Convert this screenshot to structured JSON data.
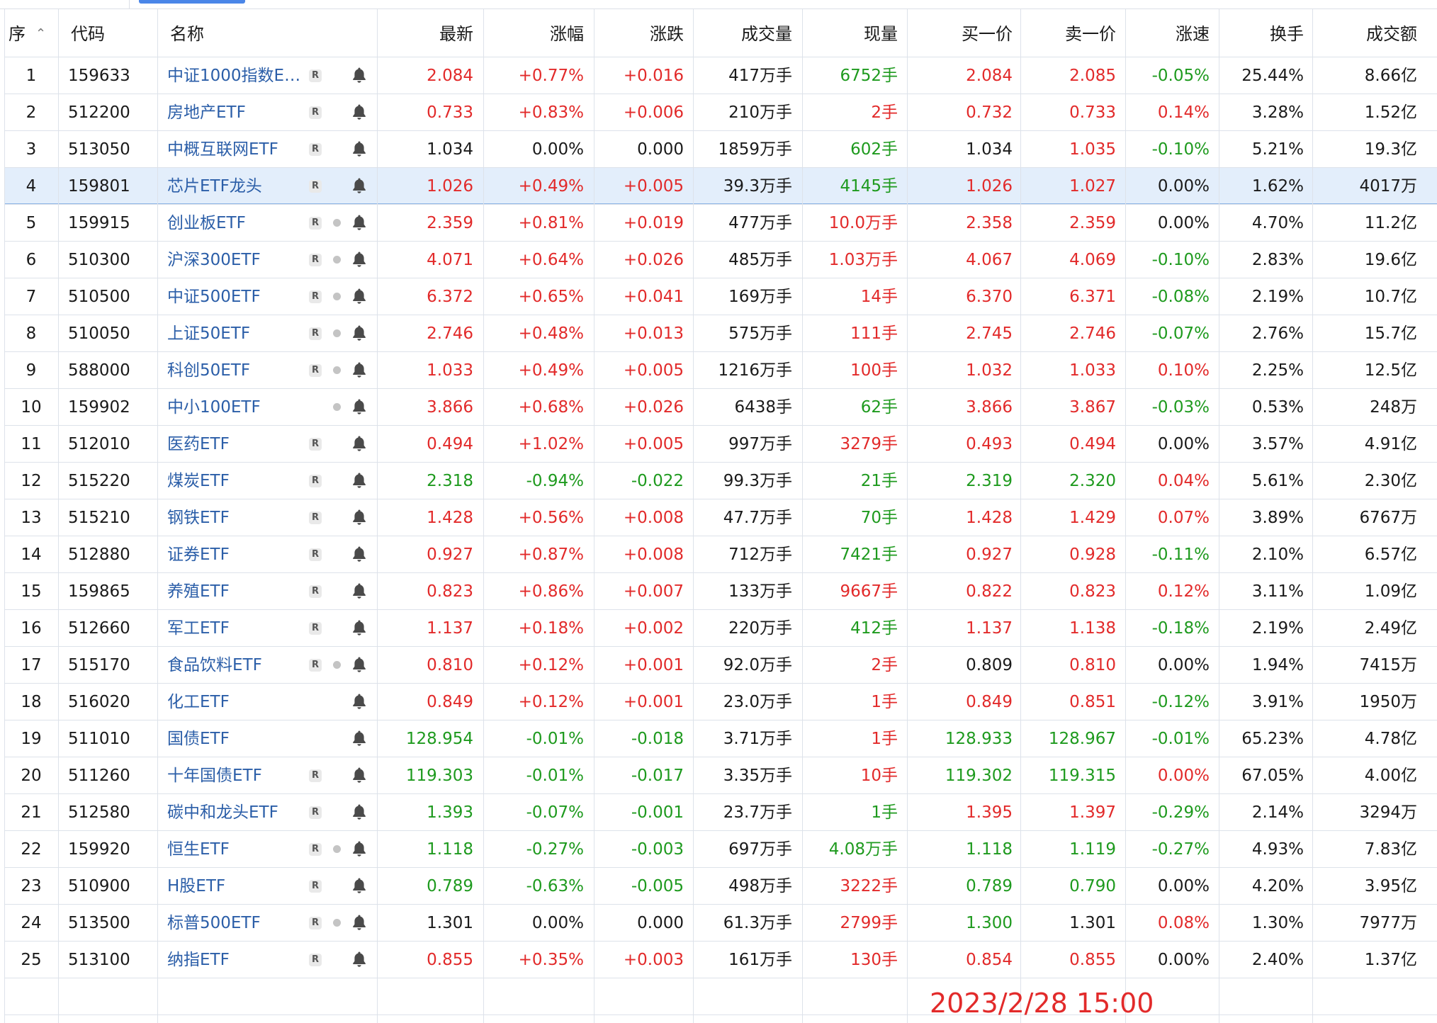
{
  "columns": {
    "seq": "序",
    "code": "代码",
    "name": "名称",
    "latest": "最新",
    "pct": "涨幅",
    "chg": "涨跌",
    "volume": "成交量",
    "now_vol": "现量",
    "bid": "买一价",
    "ask": "卖一价",
    "speed": "涨速",
    "turnover": "换手",
    "amount": "成交额"
  },
  "sort_icon": "sort-ascending-icon",
  "rows": [
    {
      "seq": "1",
      "code": "159633",
      "name": "中证1000指数E…",
      "r": true,
      "dot": false,
      "latest": "2.084",
      "pct": "+0.77%",
      "chg": "+0.016",
      "volume": "417万手",
      "now_vol": "6752手",
      "bid": "2.084",
      "ask": "2.085",
      "speed": "-0.05%",
      "turnover": "25.44%",
      "amount": "8.66亿",
      "c": {
        "latest": "red",
        "pct": "red",
        "chg": "red",
        "now_vol": "green",
        "bid": "red",
        "ask": "red",
        "speed": "green"
      }
    },
    {
      "seq": "2",
      "code": "512200",
      "name": "房地产ETF",
      "r": true,
      "dot": false,
      "latest": "0.733",
      "pct": "+0.83%",
      "chg": "+0.006",
      "volume": "210万手",
      "now_vol": "2手",
      "bid": "0.732",
      "ask": "0.733",
      "speed": "0.14%",
      "turnover": "3.28%",
      "amount": "1.52亿",
      "c": {
        "latest": "red",
        "pct": "red",
        "chg": "red",
        "now_vol": "red",
        "bid": "red",
        "ask": "red",
        "speed": "red"
      }
    },
    {
      "seq": "3",
      "code": "513050",
      "name": "中概互联网ETF",
      "r": true,
      "dot": false,
      "latest": "1.034",
      "pct": "0.00%",
      "chg": "0.000",
      "volume": "1859万手",
      "now_vol": "602手",
      "bid": "1.034",
      "ask": "1.035",
      "speed": "-0.10%",
      "turnover": "5.21%",
      "amount": "19.3亿",
      "c": {
        "latest": "black",
        "pct": "black",
        "chg": "black",
        "now_vol": "green",
        "bid": "black",
        "ask": "red",
        "speed": "green"
      }
    },
    {
      "seq": "4",
      "code": "159801",
      "name": "芯片ETF龙头",
      "r": true,
      "dot": false,
      "latest": "1.026",
      "pct": "+0.49%",
      "chg": "+0.005",
      "volume": "39.3万手",
      "now_vol": "4145手",
      "bid": "1.026",
      "ask": "1.027",
      "speed": "0.00%",
      "turnover": "1.62%",
      "amount": "4017万",
      "selected": true,
      "c": {
        "latest": "red",
        "pct": "red",
        "chg": "red",
        "now_vol": "green",
        "bid": "red",
        "ask": "red",
        "speed": "black"
      }
    },
    {
      "seq": "5",
      "code": "159915",
      "name": "创业板ETF",
      "r": true,
      "dot": true,
      "latest": "2.359",
      "pct": "+0.81%",
      "chg": "+0.019",
      "volume": "477万手",
      "now_vol": "10.0万手",
      "bid": "2.358",
      "ask": "2.359",
      "speed": "0.00%",
      "turnover": "4.70%",
      "amount": "11.2亿",
      "c": {
        "latest": "red",
        "pct": "red",
        "chg": "red",
        "now_vol": "red",
        "bid": "red",
        "ask": "red",
        "speed": "black"
      }
    },
    {
      "seq": "6",
      "code": "510300",
      "name": "沪深300ETF",
      "r": true,
      "dot": true,
      "latest": "4.071",
      "pct": "+0.64%",
      "chg": "+0.026",
      "volume": "485万手",
      "now_vol": "1.03万手",
      "bid": "4.067",
      "ask": "4.069",
      "speed": "-0.10%",
      "turnover": "2.83%",
      "amount": "19.6亿",
      "c": {
        "latest": "red",
        "pct": "red",
        "chg": "red",
        "now_vol": "red",
        "bid": "red",
        "ask": "red",
        "speed": "green"
      }
    },
    {
      "seq": "7",
      "code": "510500",
      "name": "中证500ETF",
      "r": true,
      "dot": true,
      "latest": "6.372",
      "pct": "+0.65%",
      "chg": "+0.041",
      "volume": "169万手",
      "now_vol": "14手",
      "bid": "6.370",
      "ask": "6.371",
      "speed": "-0.08%",
      "turnover": "2.19%",
      "amount": "10.7亿",
      "c": {
        "latest": "red",
        "pct": "red",
        "chg": "red",
        "now_vol": "red",
        "bid": "red",
        "ask": "red",
        "speed": "green"
      }
    },
    {
      "seq": "8",
      "code": "510050",
      "name": "上证50ETF",
      "r": true,
      "dot": true,
      "latest": "2.746",
      "pct": "+0.48%",
      "chg": "+0.013",
      "volume": "575万手",
      "now_vol": "111手",
      "bid": "2.745",
      "ask": "2.746",
      "speed": "-0.07%",
      "turnover": "2.76%",
      "amount": "15.7亿",
      "c": {
        "latest": "red",
        "pct": "red",
        "chg": "red",
        "now_vol": "red",
        "bid": "red",
        "ask": "red",
        "speed": "green"
      }
    },
    {
      "seq": "9",
      "code": "588000",
      "name": "科创50ETF",
      "r": true,
      "dot": true,
      "latest": "1.033",
      "pct": "+0.49%",
      "chg": "+0.005",
      "volume": "1216万手",
      "now_vol": "100手",
      "bid": "1.032",
      "ask": "1.033",
      "speed": "0.10%",
      "turnover": "2.25%",
      "amount": "12.5亿",
      "c": {
        "latest": "red",
        "pct": "red",
        "chg": "red",
        "now_vol": "red",
        "bid": "red",
        "ask": "red",
        "speed": "red"
      }
    },
    {
      "seq": "10",
      "code": "159902",
      "name": "中小100ETF",
      "r": false,
      "dot": true,
      "latest": "3.866",
      "pct": "+0.68%",
      "chg": "+0.026",
      "volume": "6438手",
      "now_vol": "62手",
      "bid": "3.866",
      "ask": "3.867",
      "speed": "-0.03%",
      "turnover": "0.53%",
      "amount": "248万",
      "c": {
        "latest": "red",
        "pct": "red",
        "chg": "red",
        "now_vol": "green",
        "bid": "red",
        "ask": "red",
        "speed": "green"
      }
    },
    {
      "seq": "11",
      "code": "512010",
      "name": "医药ETF",
      "r": true,
      "dot": false,
      "latest": "0.494",
      "pct": "+1.02%",
      "chg": "+0.005",
      "volume": "997万手",
      "now_vol": "3279手",
      "bid": "0.493",
      "ask": "0.494",
      "speed": "0.00%",
      "turnover": "3.57%",
      "amount": "4.91亿",
      "c": {
        "latest": "red",
        "pct": "red",
        "chg": "red",
        "now_vol": "red",
        "bid": "red",
        "ask": "red",
        "speed": "black"
      }
    },
    {
      "seq": "12",
      "code": "515220",
      "name": "煤炭ETF",
      "r": true,
      "dot": false,
      "latest": "2.318",
      "pct": "-0.94%",
      "chg": "-0.022",
      "volume": "99.3万手",
      "now_vol": "21手",
      "bid": "2.319",
      "ask": "2.320",
      "speed": "0.04%",
      "turnover": "5.61%",
      "amount": "2.30亿",
      "c": {
        "latest": "green",
        "pct": "green",
        "chg": "green",
        "now_vol": "green",
        "bid": "green",
        "ask": "green",
        "speed": "red"
      }
    },
    {
      "seq": "13",
      "code": "515210",
      "name": "钢铁ETF",
      "r": true,
      "dot": false,
      "latest": "1.428",
      "pct": "+0.56%",
      "chg": "+0.008",
      "volume": "47.7万手",
      "now_vol": "70手",
      "bid": "1.428",
      "ask": "1.429",
      "speed": "0.07%",
      "turnover": "3.89%",
      "amount": "6767万",
      "c": {
        "latest": "red",
        "pct": "red",
        "chg": "red",
        "now_vol": "green",
        "bid": "red",
        "ask": "red",
        "speed": "red"
      }
    },
    {
      "seq": "14",
      "code": "512880",
      "name": "证券ETF",
      "r": true,
      "dot": false,
      "latest": "0.927",
      "pct": "+0.87%",
      "chg": "+0.008",
      "volume": "712万手",
      "now_vol": "7421手",
      "bid": "0.927",
      "ask": "0.928",
      "speed": "-0.11%",
      "turnover": "2.10%",
      "amount": "6.57亿",
      "c": {
        "latest": "red",
        "pct": "red",
        "chg": "red",
        "now_vol": "green",
        "bid": "red",
        "ask": "red",
        "speed": "green"
      }
    },
    {
      "seq": "15",
      "code": "159865",
      "name": "养殖ETF",
      "r": true,
      "dot": false,
      "latest": "0.823",
      "pct": "+0.86%",
      "chg": "+0.007",
      "volume": "133万手",
      "now_vol": "9667手",
      "bid": "0.822",
      "ask": "0.823",
      "speed": "0.12%",
      "turnover": "3.11%",
      "amount": "1.09亿",
      "c": {
        "latest": "red",
        "pct": "red",
        "chg": "red",
        "now_vol": "red",
        "bid": "red",
        "ask": "red",
        "speed": "red"
      }
    },
    {
      "seq": "16",
      "code": "512660",
      "name": "军工ETF",
      "r": true,
      "dot": false,
      "latest": "1.137",
      "pct": "+0.18%",
      "chg": "+0.002",
      "volume": "220万手",
      "now_vol": "412手",
      "bid": "1.137",
      "ask": "1.138",
      "speed": "-0.18%",
      "turnover": "2.19%",
      "amount": "2.49亿",
      "c": {
        "latest": "red",
        "pct": "red",
        "chg": "red",
        "now_vol": "green",
        "bid": "red",
        "ask": "red",
        "speed": "green"
      }
    },
    {
      "seq": "17",
      "code": "515170",
      "name": "食品饮料ETF",
      "r": true,
      "dot": true,
      "latest": "0.810",
      "pct": "+0.12%",
      "chg": "+0.001",
      "volume": "92.0万手",
      "now_vol": "2手",
      "bid": "0.809",
      "ask": "0.810",
      "speed": "0.00%",
      "turnover": "1.94%",
      "amount": "7415万",
      "c": {
        "latest": "red",
        "pct": "red",
        "chg": "red",
        "now_vol": "red",
        "bid": "black",
        "ask": "red",
        "speed": "black"
      }
    },
    {
      "seq": "18",
      "code": "516020",
      "name": "化工ETF",
      "r": false,
      "dot": false,
      "latest": "0.849",
      "pct": "+0.12%",
      "chg": "+0.001",
      "volume": "23.0万手",
      "now_vol": "1手",
      "bid": "0.849",
      "ask": "0.851",
      "speed": "-0.12%",
      "turnover": "3.91%",
      "amount": "1950万",
      "c": {
        "latest": "red",
        "pct": "red",
        "chg": "red",
        "now_vol": "red",
        "bid": "red",
        "ask": "red",
        "speed": "green"
      }
    },
    {
      "seq": "19",
      "code": "511010",
      "name": "国债ETF",
      "r": false,
      "dot": false,
      "latest": "128.954",
      "pct": "-0.01%",
      "chg": "-0.018",
      "volume": "3.71万手",
      "now_vol": "1手",
      "bid": "128.933",
      "ask": "128.967",
      "speed": "-0.01%",
      "turnover": "65.23%",
      "amount": "4.78亿",
      "c": {
        "latest": "green",
        "pct": "green",
        "chg": "green",
        "now_vol": "red",
        "bid": "green",
        "ask": "green",
        "speed": "green"
      }
    },
    {
      "seq": "20",
      "code": "511260",
      "name": "十年国债ETF",
      "r": true,
      "dot": false,
      "latest": "119.303",
      "pct": "-0.01%",
      "chg": "-0.017",
      "volume": "3.35万手",
      "now_vol": "10手",
      "bid": "119.302",
      "ask": "119.315",
      "speed": "0.00%",
      "turnover": "67.05%",
      "amount": "4.00亿",
      "c": {
        "latest": "green",
        "pct": "green",
        "chg": "green",
        "now_vol": "red",
        "bid": "green",
        "ask": "green",
        "speed": "red"
      }
    },
    {
      "seq": "21",
      "code": "512580",
      "name": "碳中和龙头ETF",
      "r": true,
      "dot": false,
      "latest": "1.393",
      "pct": "-0.07%",
      "chg": "-0.001",
      "volume": "23.7万手",
      "now_vol": "1手",
      "bid": "1.395",
      "ask": "1.397",
      "speed": "-0.29%",
      "turnover": "2.14%",
      "amount": "3294万",
      "c": {
        "latest": "green",
        "pct": "green",
        "chg": "green",
        "now_vol": "green",
        "bid": "red",
        "ask": "red",
        "speed": "green"
      }
    },
    {
      "seq": "22",
      "code": "159920",
      "name": "恒生ETF",
      "r": true,
      "dot": true,
      "latest": "1.118",
      "pct": "-0.27%",
      "chg": "-0.003",
      "volume": "697万手",
      "now_vol": "4.08万手",
      "bid": "1.118",
      "ask": "1.119",
      "speed": "-0.27%",
      "turnover": "4.93%",
      "amount": "7.83亿",
      "c": {
        "latest": "green",
        "pct": "green",
        "chg": "green",
        "now_vol": "green",
        "bid": "green",
        "ask": "green",
        "speed": "green"
      }
    },
    {
      "seq": "23",
      "code": "510900",
      "name": "H股ETF",
      "r": true,
      "dot": false,
      "latest": "0.789",
      "pct": "-0.63%",
      "chg": "-0.005",
      "volume": "498万手",
      "now_vol": "3222手",
      "bid": "0.789",
      "ask": "0.790",
      "speed": "0.00%",
      "turnover": "4.20%",
      "amount": "3.95亿",
      "c": {
        "latest": "green",
        "pct": "green",
        "chg": "green",
        "now_vol": "red",
        "bid": "green",
        "ask": "green",
        "speed": "black"
      }
    },
    {
      "seq": "24",
      "code": "513500",
      "name": "标普500ETF",
      "r": true,
      "dot": true,
      "latest": "1.301",
      "pct": "0.00%",
      "chg": "0.000",
      "volume": "61.3万手",
      "now_vol": "2799手",
      "bid": "1.300",
      "ask": "1.301",
      "speed": "0.08%",
      "turnover": "1.30%",
      "amount": "7977万",
      "c": {
        "latest": "black",
        "pct": "black",
        "chg": "black",
        "now_vol": "red",
        "bid": "green",
        "ask": "black",
        "speed": "red"
      }
    },
    {
      "seq": "25",
      "code": "513100",
      "name": "纳指ETF",
      "r": true,
      "dot": false,
      "latest": "0.855",
      "pct": "+0.35%",
      "chg": "+0.003",
      "volume": "161万手",
      "now_vol": "130手",
      "bid": "0.854",
      "ask": "0.855",
      "speed": "0.00%",
      "turnover": "2.40%",
      "amount": "1.37亿",
      "c": {
        "latest": "red",
        "pct": "red",
        "chg": "red",
        "now_vol": "red",
        "bid": "red",
        "ask": "red",
        "speed": "black"
      }
    }
  ],
  "footer": {
    "timestamp": "2023/2/28 15:00"
  },
  "colors": {
    "up": "#e22a2a",
    "down": "#1e9a1e",
    "flat": "#1a1a1a",
    "name_link": "#2b5ea8",
    "selected_bg": "#e3eefb"
  }
}
